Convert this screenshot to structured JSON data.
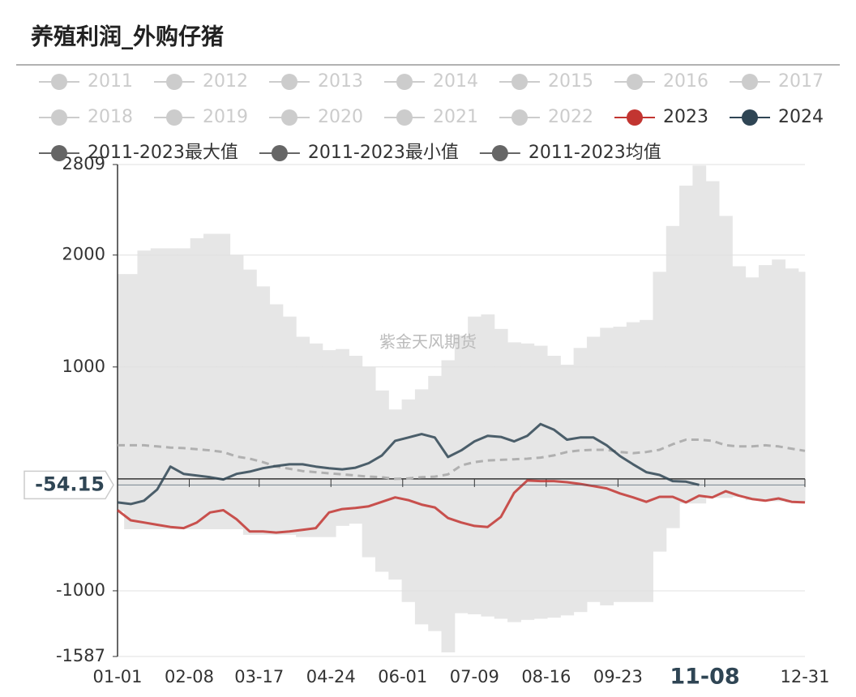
{
  "chart_data": {
    "type": "line",
    "title": "养殖利润_外购仔猪",
    "watermark": "紫金天风期货",
    "x": [
      0,
      7,
      14,
      21,
      28,
      35,
      42,
      49,
      56,
      63,
      70,
      77,
      84,
      91,
      98,
      105,
      112,
      119,
      126,
      133,
      140,
      147,
      154,
      161,
      168,
      175,
      182,
      189,
      196,
      203,
      210,
      217,
      224,
      231,
      238,
      245,
      252,
      259,
      266,
      273,
      280,
      287,
      294,
      301,
      308,
      315,
      322,
      329,
      336,
      343,
      350,
      357,
      364
    ],
    "xlim": [
      0,
      364
    ],
    "xticks": [
      {
        "value": 0,
        "label": "01-01"
      },
      {
        "value": 38,
        "label": "02-08"
      },
      {
        "value": 75,
        "label": "03-17"
      },
      {
        "value": 113,
        "label": "04-24"
      },
      {
        "value": 151,
        "label": "06-01"
      },
      {
        "value": 189,
        "label": "07-09"
      },
      {
        "value": 227,
        "label": "08-16"
      },
      {
        "value": 265,
        "label": "09-23"
      },
      {
        "value": 311,
        "label": "11-08"
      },
      {
        "value": 364,
        "label": "12-31"
      }
    ],
    "ylim": [
      -1587,
      2809
    ],
    "yticks": [
      -1587,
      -1000,
      1000,
      2000,
      2809
    ],
    "grid": true,
    "pointer": {
      "value": -54.15,
      "x": 311
    },
    "inactive_color": "#cccccc",
    "band_fill": "#e6e6e6",
    "mean_stroke": "#b0b0b0",
    "series": [
      {
        "name": "2011",
        "visible": false
      },
      {
        "name": "2012",
        "visible": false
      },
      {
        "name": "2013",
        "visible": false
      },
      {
        "name": "2014",
        "visible": false
      },
      {
        "name": "2015",
        "visible": false
      },
      {
        "name": "2016",
        "visible": false
      },
      {
        "name": "2017",
        "visible": false
      },
      {
        "name": "2018",
        "visible": false
      },
      {
        "name": "2019",
        "visible": false
      },
      {
        "name": "2020",
        "visible": false
      },
      {
        "name": "2021",
        "visible": false
      },
      {
        "name": "2022",
        "visible": false
      },
      {
        "name": "2023",
        "color": "#c23531",
        "values": [
          -280,
          -370,
          -390,
          -410,
          -430,
          -440,
          -390,
          -300,
          -280,
          -360,
          -470,
          -470,
          -480,
          -470,
          -455,
          -440,
          -300,
          -270,
          -260,
          -245,
          -205,
          -165,
          -190,
          -230,
          -255,
          -350,
          -390,
          -420,
          -430,
          -340,
          -125,
          -15,
          -20,
          -20,
          -30,
          -45,
          -65,
          -85,
          -130,
          -165,
          -205,
          -160,
          -160,
          -210,
          -150,
          -165,
          -110,
          -150,
          -180,
          -195,
          -175,
          -205,
          -210
        ]
      },
      {
        "name": "2024",
        "color": "#2f4554",
        "values": [
          -210,
          -225,
          -195,
          -95,
          110,
          45,
          30,
          15,
          -5,
          45,
          65,
          95,
          115,
          130,
          130,
          110,
          95,
          85,
          100,
          140,
          210,
          340,
          370,
          400,
          370,
          195,
          255,
          335,
          385,
          375,
          335,
          385,
          490,
          440,
          350,
          370,
          370,
          300,
          205,
          130,
          60,
          35,
          -20,
          -25,
          -54.15,
          null,
          null,
          null,
          null,
          null,
          null,
          null,
          null
        ]
      },
      {
        "name": "2011-2023最大值",
        "color": "#666666",
        "role": "max",
        "values": [
          1830,
          1830,
          2040,
          2060,
          2060,
          2060,
          2150,
          2190,
          2190,
          2000,
          1870,
          1720,
          1560,
          1450,
          1270,
          1210,
          1150,
          1160,
          1100,
          1000,
          790,
          620,
          710,
          800,
          920,
          1060,
          1280,
          1450,
          1470,
          1340,
          1220,
          1210,
          1190,
          1100,
          1020,
          1170,
          1270,
          1350,
          1360,
          1400,
          1420,
          1850,
          2260,
          2620,
          2800,
          2660,
          2350,
          1900,
          1800,
          1910,
          1960,
          1880,
          1850
        ]
      },
      {
        "name": "2011-2023最小值",
        "color": "#666666",
        "role": "min",
        "values": [
          -290,
          -450,
          -450,
          -450,
          -450,
          -450,
          -450,
          -450,
          -450,
          -450,
          -500,
          -500,
          -500,
          -500,
          -520,
          -520,
          -520,
          -420,
          -400,
          -700,
          -830,
          -900,
          -1100,
          -1300,
          -1360,
          -1550,
          -1200,
          -1210,
          -1230,
          -1250,
          -1280,
          -1260,
          -1250,
          -1240,
          -1220,
          -1190,
          -1100,
          -1130,
          -1100,
          -1100,
          -1100,
          -650,
          -440,
          -220,
          -220,
          -170,
          -170,
          -160,
          -190,
          -200,
          -200,
          -210,
          -215
        ]
      },
      {
        "name": "2011-2023均值",
        "color": "#666666",
        "role": "mean",
        "values": [
          300,
          300,
          300,
          290,
          280,
          275,
          265,
          255,
          240,
          200,
          180,
          150,
          110,
          90,
          70,
          60,
          50,
          40,
          30,
          20,
          15,
          0,
          5,
          15,
          20,
          40,
          120,
          150,
          165,
          170,
          175,
          180,
          190,
          210,
          240,
          255,
          260,
          260,
          240,
          230,
          240,
          260,
          310,
          350,
          350,
          340,
          300,
          290,
          290,
          300,
          290,
          270,
          250
        ]
      }
    ]
  }
}
